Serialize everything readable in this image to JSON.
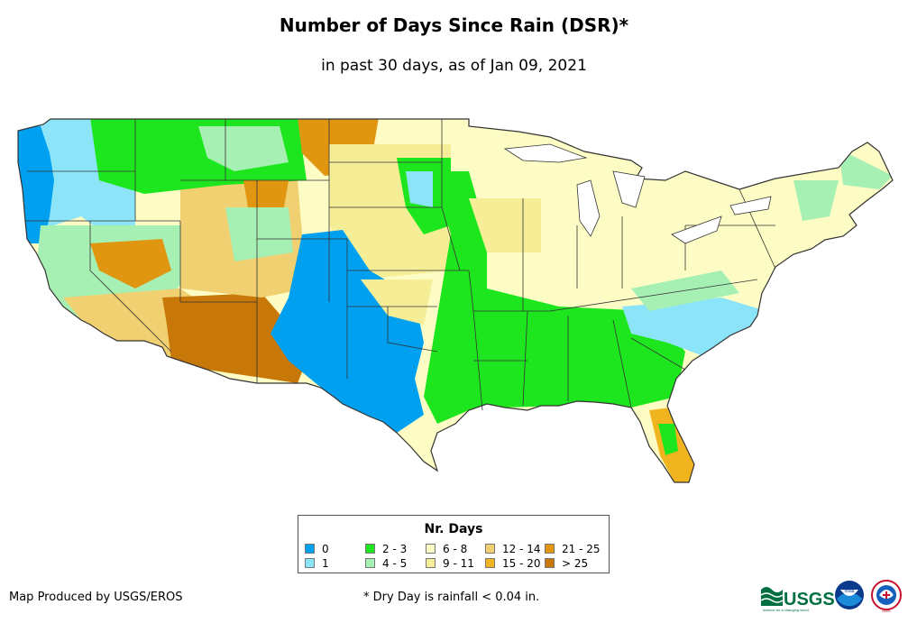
{
  "title": "Number of Days Since Rain (DSR)*",
  "subtitle": "in past 30 days, as of Jan 09, 2021",
  "legend": {
    "title": "Nr. Days",
    "items": [
      {
        "label": "0",
        "color": "#00a0f0"
      },
      {
        "label": "1",
        "color": "#8ce4f8"
      },
      {
        "label": "2 - 3",
        "color": "#1ee61e"
      },
      {
        "label": "4 - 5",
        "color": "#a6f0b4"
      },
      {
        "label": "6 - 8",
        "color": "#fcfcc4"
      },
      {
        "label": "9 - 11",
        "color": "#f6ee96"
      },
      {
        "label": "12 - 14",
        "color": "#f0d070"
      },
      {
        "label": "15 - 20",
        "color": "#f0b41e"
      },
      {
        "label": "21 - 25",
        "color": "#e09610"
      },
      {
        "label": "> 25",
        "color": "#c87808"
      }
    ]
  },
  "credit": "Map Produced by USGS/EROS",
  "footnote": "* Dry Day is rainfall < 0.04 in.",
  "logos": {
    "usgs": "USGS",
    "usgs_tagline": "science for a changing world",
    "noaa": "noaa",
    "nws": "NWS"
  }
}
